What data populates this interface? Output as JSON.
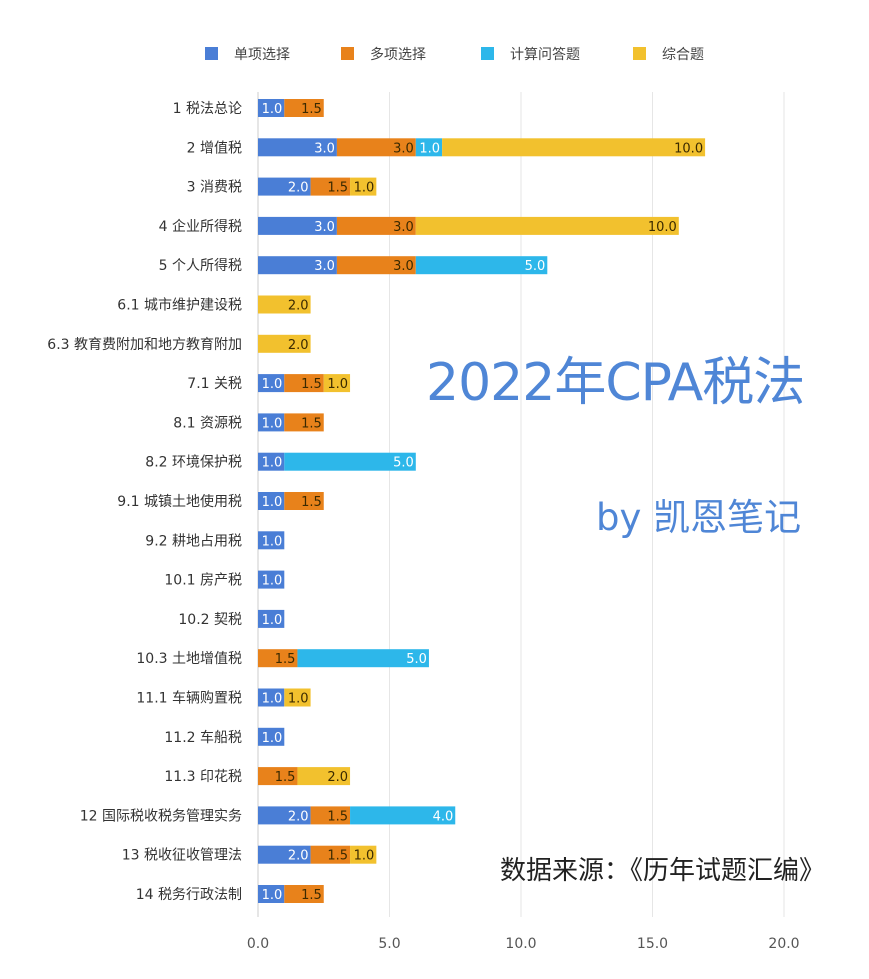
{
  "colors": {
    "single": "#4a7ed6",
    "multi": "#e8821b",
    "calc": "#2db7ea",
    "comprehensive": "#f2c12e",
    "grid": "#e6e6e6",
    "label_text": "#333333"
  },
  "watermark": {
    "title": "2022年CPA税法",
    "author": "by 凯恩笔记"
  },
  "source_note": "数据来源：《历年试题汇编》",
  "chart_data": {
    "type": "bar",
    "orientation": "horizontal",
    "stacked": true,
    "categories": [
      "1 税法总论",
      "2 增值税",
      "3 消费税",
      "4 企业所得税",
      "5 个人所得税",
      "6.1 城市维护建设税",
      "6.3 教育费附加和地方教育附加",
      "7.1 关税",
      "8.1 资源税",
      "8.2 环境保护税",
      "9.1 城镇土地使用税",
      "9.2 耕地占用税",
      "10.1 房产税",
      "10.2 契税",
      "10.3 土地增值税",
      "11.1 车辆购置税",
      "11.2 车船税",
      "11.3 印花税",
      "12 国际税收税务管理实务",
      "13 税收征收管理法",
      "14 税务行政法制"
    ],
    "series": [
      {
        "name": "单项选择",
        "color": "#4a7ed6",
        "values": [
          1,
          3,
          2,
          3,
          3,
          0,
          0,
          1,
          1,
          1,
          1,
          1,
          1,
          1,
          0,
          1,
          1,
          0,
          2,
          2,
          1
        ]
      },
      {
        "name": "多项选择",
        "color": "#e8821b",
        "values": [
          1.5,
          3,
          1.5,
          3,
          3,
          0,
          0,
          1.5,
          1.5,
          0,
          1.5,
          0,
          0,
          0,
          1.5,
          0,
          0,
          1.5,
          1.5,
          1.5,
          1.5
        ]
      },
      {
        "name": "计算问答题",
        "color": "#2db7ea",
        "values": [
          0,
          1,
          0,
          0,
          5,
          0,
          0,
          0,
          0,
          5,
          0,
          0,
          0,
          0,
          5,
          0,
          0,
          0,
          4,
          0,
          0
        ]
      },
      {
        "name": "综合题",
        "color": "#f2c12e",
        "values": [
          0,
          10,
          1,
          10,
          0,
          2,
          2,
          1,
          0,
          0,
          0,
          0,
          0,
          0,
          0,
          1,
          0,
          2,
          0,
          1,
          0
        ]
      }
    ],
    "xlim": [
      0,
      22.5
    ],
    "xticks": [
      "0.0",
      "5.0",
      "10.0",
      "15.0",
      "20.0"
    ],
    "xtick_values": [
      0,
      5,
      10,
      15,
      20
    ],
    "grid": true,
    "legend_position": "top"
  }
}
